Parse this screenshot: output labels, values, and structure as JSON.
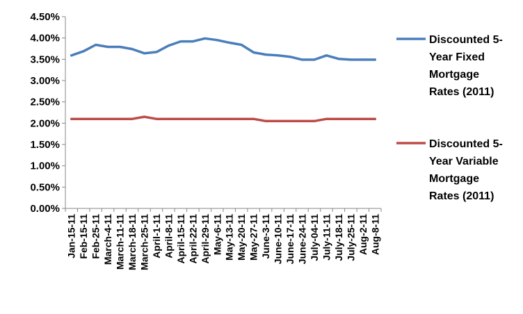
{
  "chart_data": {
    "type": "line",
    "categories": [
      "Jan-15-11",
      "Feb-15-11",
      "Feb-25-11",
      "March-4-11",
      "March-11-11",
      "March-18-11",
      "March-25-11",
      "April-1-11",
      "April-8-11",
      "April-15-11",
      "April-22-11",
      "April-29-11",
      "May-6-11",
      "May-13-11",
      "May-20-11",
      "May-27-11",
      "June-3-11",
      "June-10-11",
      "June-17-11",
      "June-24-11",
      "July-04-11",
      "July-11-11",
      "July-18-11",
      "July-25-11",
      "Aug-2-11",
      "Aug-8-11"
    ],
    "category_labels_shown": [
      "Jan-15-11",
      "Feb-15-11",
      "Feb-25-11",
      "March-4-11",
      "March-11-11",
      "March-18-11",
      "March-25-11",
      "April-1-11",
      "April-8-11",
      "April-15-11",
      "April-22-11",
      "April-29-11",
      "May-6-11",
      "May-13-11",
      "May-20-11",
      "May-27-11",
      "June-3-11",
      "June-10-11",
      "June-17-11",
      "June-24-11",
      "July-04-11",
      "July-11-11",
      "July-18-11",
      "July-25-11",
      "Aug-2-11",
      "Aug-8-11"
    ],
    "series": [
      {
        "name": "Discounted 5-Year Fixed Mortgage Rates (2011)",
        "color": "#4a7ebb",
        "values": [
          3.59,
          3.69,
          3.84,
          3.79,
          3.79,
          3.74,
          3.64,
          3.67,
          3.82,
          3.92,
          3.92,
          3.99,
          3.95,
          3.89,
          3.84,
          3.66,
          3.61,
          3.59,
          3.56,
          3.49,
          3.49,
          3.59,
          3.51,
          3.49,
          3.49,
          3.49
        ]
      },
      {
        "name": "Discounted 5-Year Variable Mortgage Rates (2011)",
        "color": "#be4b48",
        "values": [
          2.1,
          2.1,
          2.1,
          2.1,
          2.1,
          2.1,
          2.15,
          2.1,
          2.1,
          2.1,
          2.1,
          2.1,
          2.1,
          2.1,
          2.1,
          2.1,
          2.05,
          2.05,
          2.05,
          2.05,
          2.05,
          2.1,
          2.1,
          2.1,
          2.1,
          2.1
        ]
      }
    ],
    "y_ticks": [
      "0.00%",
      "0.50%",
      "1.00%",
      "1.50%",
      "2.00%",
      "2.50%",
      "3.00%",
      "3.50%",
      "4.00%",
      "4.50%"
    ],
    "ylim": [
      0,
      4.5
    ],
    "grid": false,
    "legend": {
      "position": "right",
      "entries": [
        {
          "lines": [
            "Discounted 5-",
            "Year Fixed",
            "Mortgage",
            "Rates (2011)"
          ]
        },
        {
          "lines": [
            "Discounted 5-",
            "Year Variable",
            "Mortgage",
            "Rates (2011)"
          ]
        }
      ]
    }
  }
}
